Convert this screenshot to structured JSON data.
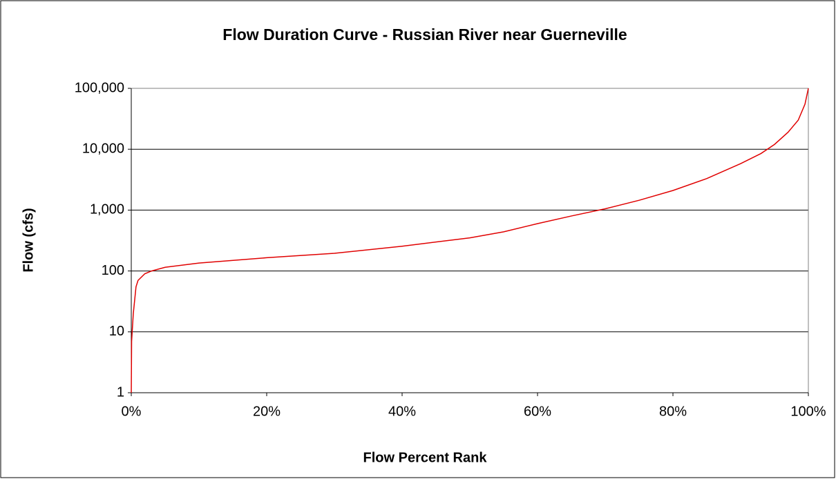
{
  "chart_data": {
    "type": "line",
    "title": "Flow Duration Curve - Russian River near Guerneville",
    "xlabel": "Flow Percent Rank",
    "ylabel": "Flow (cfs)",
    "x": [
      0,
      0.05,
      0.3,
      0.7,
      1,
      2,
      3,
      5,
      10,
      20,
      30,
      40,
      50,
      55,
      60,
      65,
      70,
      75,
      80,
      85,
      90,
      93,
      95,
      97,
      98.5,
      99.5,
      100
    ],
    "series": [
      {
        "name": "Flow",
        "color": "#e00000",
        "values": [
          1,
          7,
          20,
          55,
          70,
          90,
          100,
          115,
          135,
          165,
          195,
          255,
          350,
          440,
          600,
          800,
          1050,
          1450,
          2100,
          3300,
          5800,
          8500,
          12000,
          19000,
          30000,
          55000,
          100000
        ]
      }
    ],
    "xlim": [
      0,
      100
    ],
    "xticks": [
      {
        "value": 0,
        "label": "0%"
      },
      {
        "value": 20,
        "label": "20%"
      },
      {
        "value": 40,
        "label": "40%"
      },
      {
        "value": 60,
        "label": "60%"
      },
      {
        "value": 80,
        "label": "80%"
      },
      {
        "value": 100,
        "label": "100%"
      }
    ],
    "ylim": [
      1,
      100000
    ],
    "yticks": [
      1,
      10,
      100,
      {
        "value": 1000,
        "label": "1,000"
      },
      {
        "value": 10000,
        "label": "10,000"
      },
      {
        "value": 100000,
        "label": "100,000"
      }
    ],
    "yscale": "log",
    "grid": true
  }
}
